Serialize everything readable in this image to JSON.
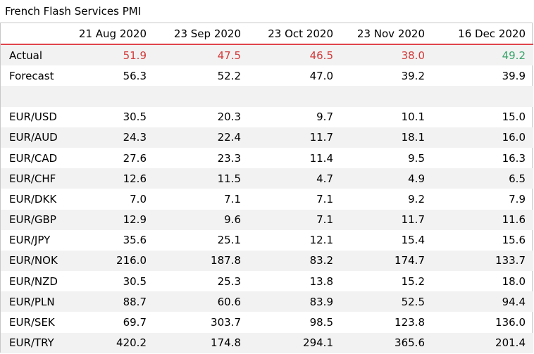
{
  "title": "French Flash Services PMI",
  "columns": [
    "",
    "21 Aug 2020",
    "23 Sep 2020",
    "23 Oct 2020",
    "23 Nov 2020",
    "16 Dec 2020"
  ],
  "actual": {
    "label": "Actual",
    "values": [
      "51.9",
      "47.5",
      "46.5",
      "38.0",
      "49.2"
    ],
    "status": [
      "miss",
      "miss",
      "miss",
      "miss",
      "beat"
    ],
    "colors": {
      "miss": "#d23a3a",
      "beat": "#3aa36a"
    }
  },
  "forecast": {
    "label": "Forecast",
    "values": [
      "56.3",
      "52.2",
      "47.0",
      "39.2",
      "39.9"
    ]
  },
  "rows": [
    {
      "pair": "EUR/USD",
      "values": [
        "30.5",
        "20.3",
        "9.7",
        "10.1",
        "15.0"
      ]
    },
    {
      "pair": "EUR/AUD",
      "values": [
        "24.3",
        "22.4",
        "11.7",
        "18.1",
        "16.0"
      ]
    },
    {
      "pair": "EUR/CAD",
      "values": [
        "27.6",
        "23.3",
        "11.4",
        "9.5",
        "16.3"
      ]
    },
    {
      "pair": "EUR/CHF",
      "values": [
        "12.6",
        "11.5",
        "4.7",
        "4.9",
        "6.5"
      ]
    },
    {
      "pair": "EUR/DKK",
      "values": [
        "7.0",
        "7.1",
        "7.1",
        "9.2",
        "7.9"
      ]
    },
    {
      "pair": "EUR/GBP",
      "values": [
        "12.9",
        "9.6",
        "7.1",
        "11.7",
        "11.6"
      ]
    },
    {
      "pair": "EUR/JPY",
      "values": [
        "35.6",
        "25.1",
        "12.1",
        "15.4",
        "15.6"
      ]
    },
    {
      "pair": "EUR/NOK",
      "values": [
        "216.0",
        "187.8",
        "83.2",
        "174.7",
        "133.7"
      ]
    },
    {
      "pair": "EUR/NZD",
      "values": [
        "30.5",
        "25.3",
        "13.8",
        "15.2",
        "18.0"
      ]
    },
    {
      "pair": "EUR/PLN",
      "values": [
        "88.7",
        "60.6",
        "83.9",
        "52.5",
        "94.4"
      ]
    },
    {
      "pair": "EUR/SEK",
      "values": [
        "69.7",
        "303.7",
        "98.5",
        "123.8",
        "136.0"
      ]
    },
    {
      "pair": "EUR/TRY",
      "values": [
        "420.2",
        "174.8",
        "294.1",
        "365.6",
        "201.4"
      ]
    }
  ]
}
